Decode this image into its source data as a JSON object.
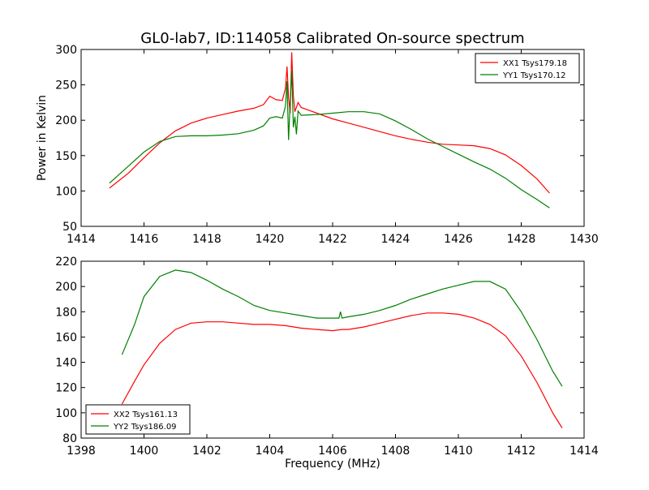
{
  "title": "GL0-lab7, ID:114058 Calibrated On-source spectrum",
  "chart_data": [
    {
      "type": "line",
      "ylabel": "Power in Kelvin",
      "xlabel": "",
      "xlim": [
        1414,
        1430
      ],
      "ylim": [
        50,
        300
      ],
      "xticks": [
        "1414",
        "1416",
        "1418",
        "1420",
        "1422",
        "1424",
        "1426",
        "1428",
        "1430"
      ],
      "yticks": [
        "50",
        "100",
        "150",
        "200",
        "250",
        "300"
      ],
      "legend_position": "top-right",
      "series": [
        {
          "name": "XX1 Tsys179.18",
          "color": "#ff0000",
          "points": [
            [
              1414.9,
              104
            ],
            [
              1415.5,
              125
            ],
            [
              1416.0,
              147
            ],
            [
              1416.5,
              168
            ],
            [
              1417.0,
              185
            ],
            [
              1417.5,
              196
            ],
            [
              1418.0,
              203
            ],
            [
              1418.5,
              208
            ],
            [
              1419.0,
              213
            ],
            [
              1419.5,
              217
            ],
            [
              1419.8,
              222
            ],
            [
              1420.0,
              234
            ],
            [
              1420.2,
              229
            ],
            [
              1420.4,
              228
            ],
            [
              1420.5,
              245
            ],
            [
              1420.55,
              276
            ],
            [
              1420.6,
              232
            ],
            [
              1420.65,
              210
            ],
            [
              1420.7,
              296
            ],
            [
              1420.75,
              235
            ],
            [
              1420.8,
              212
            ],
            [
              1420.9,
              225
            ],
            [
              1421.0,
              218
            ],
            [
              1421.5,
              210
            ],
            [
              1422.0,
              202
            ],
            [
              1422.5,
              196
            ],
            [
              1423.0,
              190
            ],
            [
              1423.5,
              184
            ],
            [
              1424.0,
              178
            ],
            [
              1424.5,
              173
            ],
            [
              1425.0,
              169
            ],
            [
              1425.5,
              166
            ],
            [
              1426.0,
              165
            ],
            [
              1426.5,
              164
            ],
            [
              1427.0,
              160
            ],
            [
              1427.5,
              151
            ],
            [
              1428.0,
              136
            ],
            [
              1428.5,
              117
            ],
            [
              1428.9,
              97
            ]
          ]
        },
        {
          "name": "YY1 Tsys170.12",
          "color": "#008000",
          "points": [
            [
              1414.9,
              111
            ],
            [
              1415.5,
              135
            ],
            [
              1416.0,
              155
            ],
            [
              1416.5,
              170
            ],
            [
              1417.0,
              177
            ],
            [
              1417.5,
              178
            ],
            [
              1418.0,
              178
            ],
            [
              1418.5,
              179
            ],
            [
              1419.0,
              181
            ],
            [
              1419.5,
              186
            ],
            [
              1419.8,
              192
            ],
            [
              1420.0,
              203
            ],
            [
              1420.2,
              205
            ],
            [
              1420.4,
              203
            ],
            [
              1420.5,
              220
            ],
            [
              1420.55,
              255
            ],
            [
              1420.6,
              172
            ],
            [
              1420.65,
              225
            ],
            [
              1420.7,
              270
            ],
            [
              1420.75,
              190
            ],
            [
              1420.8,
              205
            ],
            [
              1420.85,
              180
            ],
            [
              1420.9,
              213
            ],
            [
              1421.0,
              207
            ],
            [
              1421.5,
              208
            ],
            [
              1422.0,
              210
            ],
            [
              1422.5,
              212
            ],
            [
              1423.0,
              212
            ],
            [
              1423.5,
              209
            ],
            [
              1424.0,
              199
            ],
            [
              1424.5,
              187
            ],
            [
              1425.0,
              174
            ],
            [
              1425.5,
              163
            ],
            [
              1426.0,
              152
            ],
            [
              1426.5,
              141
            ],
            [
              1427.0,
              131
            ],
            [
              1427.5,
              118
            ],
            [
              1428.0,
              102
            ],
            [
              1428.5,
              88
            ],
            [
              1428.9,
              76
            ]
          ]
        }
      ]
    },
    {
      "type": "line",
      "ylabel": "",
      "xlabel": "Frequency (MHz)",
      "xlim": [
        1398,
        1414
      ],
      "ylim": [
        80,
        220
      ],
      "xticks": [
        "1398",
        "1400",
        "1402",
        "1404",
        "1406",
        "1408",
        "1410",
        "1412",
        "1414"
      ],
      "yticks": [
        "80",
        "100",
        "120",
        "140",
        "160",
        "180",
        "200",
        "220"
      ],
      "legend_position": "bottom-left",
      "series": [
        {
          "name": "XX2 Tsys161.13",
          "color": "#ff0000",
          "points": [
            [
              1399.3,
              107
            ],
            [
              1399.7,
              125
            ],
            [
              1400.0,
              138
            ],
            [
              1400.5,
              155
            ],
            [
              1401.0,
              166
            ],
            [
              1401.5,
              171
            ],
            [
              1402.0,
              172
            ],
            [
              1402.5,
              172
            ],
            [
              1403.0,
              171
            ],
            [
              1403.5,
              170
            ],
            [
              1404.0,
              170
            ],
            [
              1404.5,
              169
            ],
            [
              1405.0,
              167
            ],
            [
              1405.5,
              166
            ],
            [
              1406.0,
              165
            ],
            [
              1406.3,
              166
            ],
            [
              1406.5,
              166
            ],
            [
              1407.0,
              168
            ],
            [
              1407.5,
              171
            ],
            [
              1408.0,
              174
            ],
            [
              1408.5,
              177
            ],
            [
              1409.0,
              179
            ],
            [
              1409.5,
              179
            ],
            [
              1410.0,
              178
            ],
            [
              1410.5,
              175
            ],
            [
              1411.0,
              170
            ],
            [
              1411.5,
              161
            ],
            [
              1412.0,
              145
            ],
            [
              1412.5,
              124
            ],
            [
              1413.0,
              100
            ],
            [
              1413.3,
              88
            ]
          ]
        },
        {
          "name": "YY2 Tsys186.09",
          "color": "#008000",
          "points": [
            [
              1399.3,
              146
            ],
            [
              1399.7,
              170
            ],
            [
              1400.0,
              192
            ],
            [
              1400.5,
              208
            ],
            [
              1401.0,
              213
            ],
            [
              1401.5,
              211
            ],
            [
              1402.0,
              205
            ],
            [
              1402.5,
              198
            ],
            [
              1403.0,
              192
            ],
            [
              1403.5,
              185
            ],
            [
              1404.0,
              181
            ],
            [
              1404.5,
              179
            ],
            [
              1405.0,
              177
            ],
            [
              1405.5,
              175
            ],
            [
              1406.0,
              175
            ],
            [
              1406.2,
              175
            ],
            [
              1406.25,
              180
            ],
            [
              1406.3,
              175
            ],
            [
              1406.5,
              176
            ],
            [
              1407.0,
              178
            ],
            [
              1407.5,
              181
            ],
            [
              1408.0,
              185
            ],
            [
              1408.5,
              190
            ],
            [
              1409.0,
              194
            ],
            [
              1409.5,
              198
            ],
            [
              1410.0,
              201
            ],
            [
              1410.5,
              204
            ],
            [
              1411.0,
              204
            ],
            [
              1411.5,
              198
            ],
            [
              1412.0,
              180
            ],
            [
              1412.5,
              158
            ],
            [
              1413.0,
              133
            ],
            [
              1413.3,
              121
            ]
          ]
        }
      ]
    }
  ]
}
